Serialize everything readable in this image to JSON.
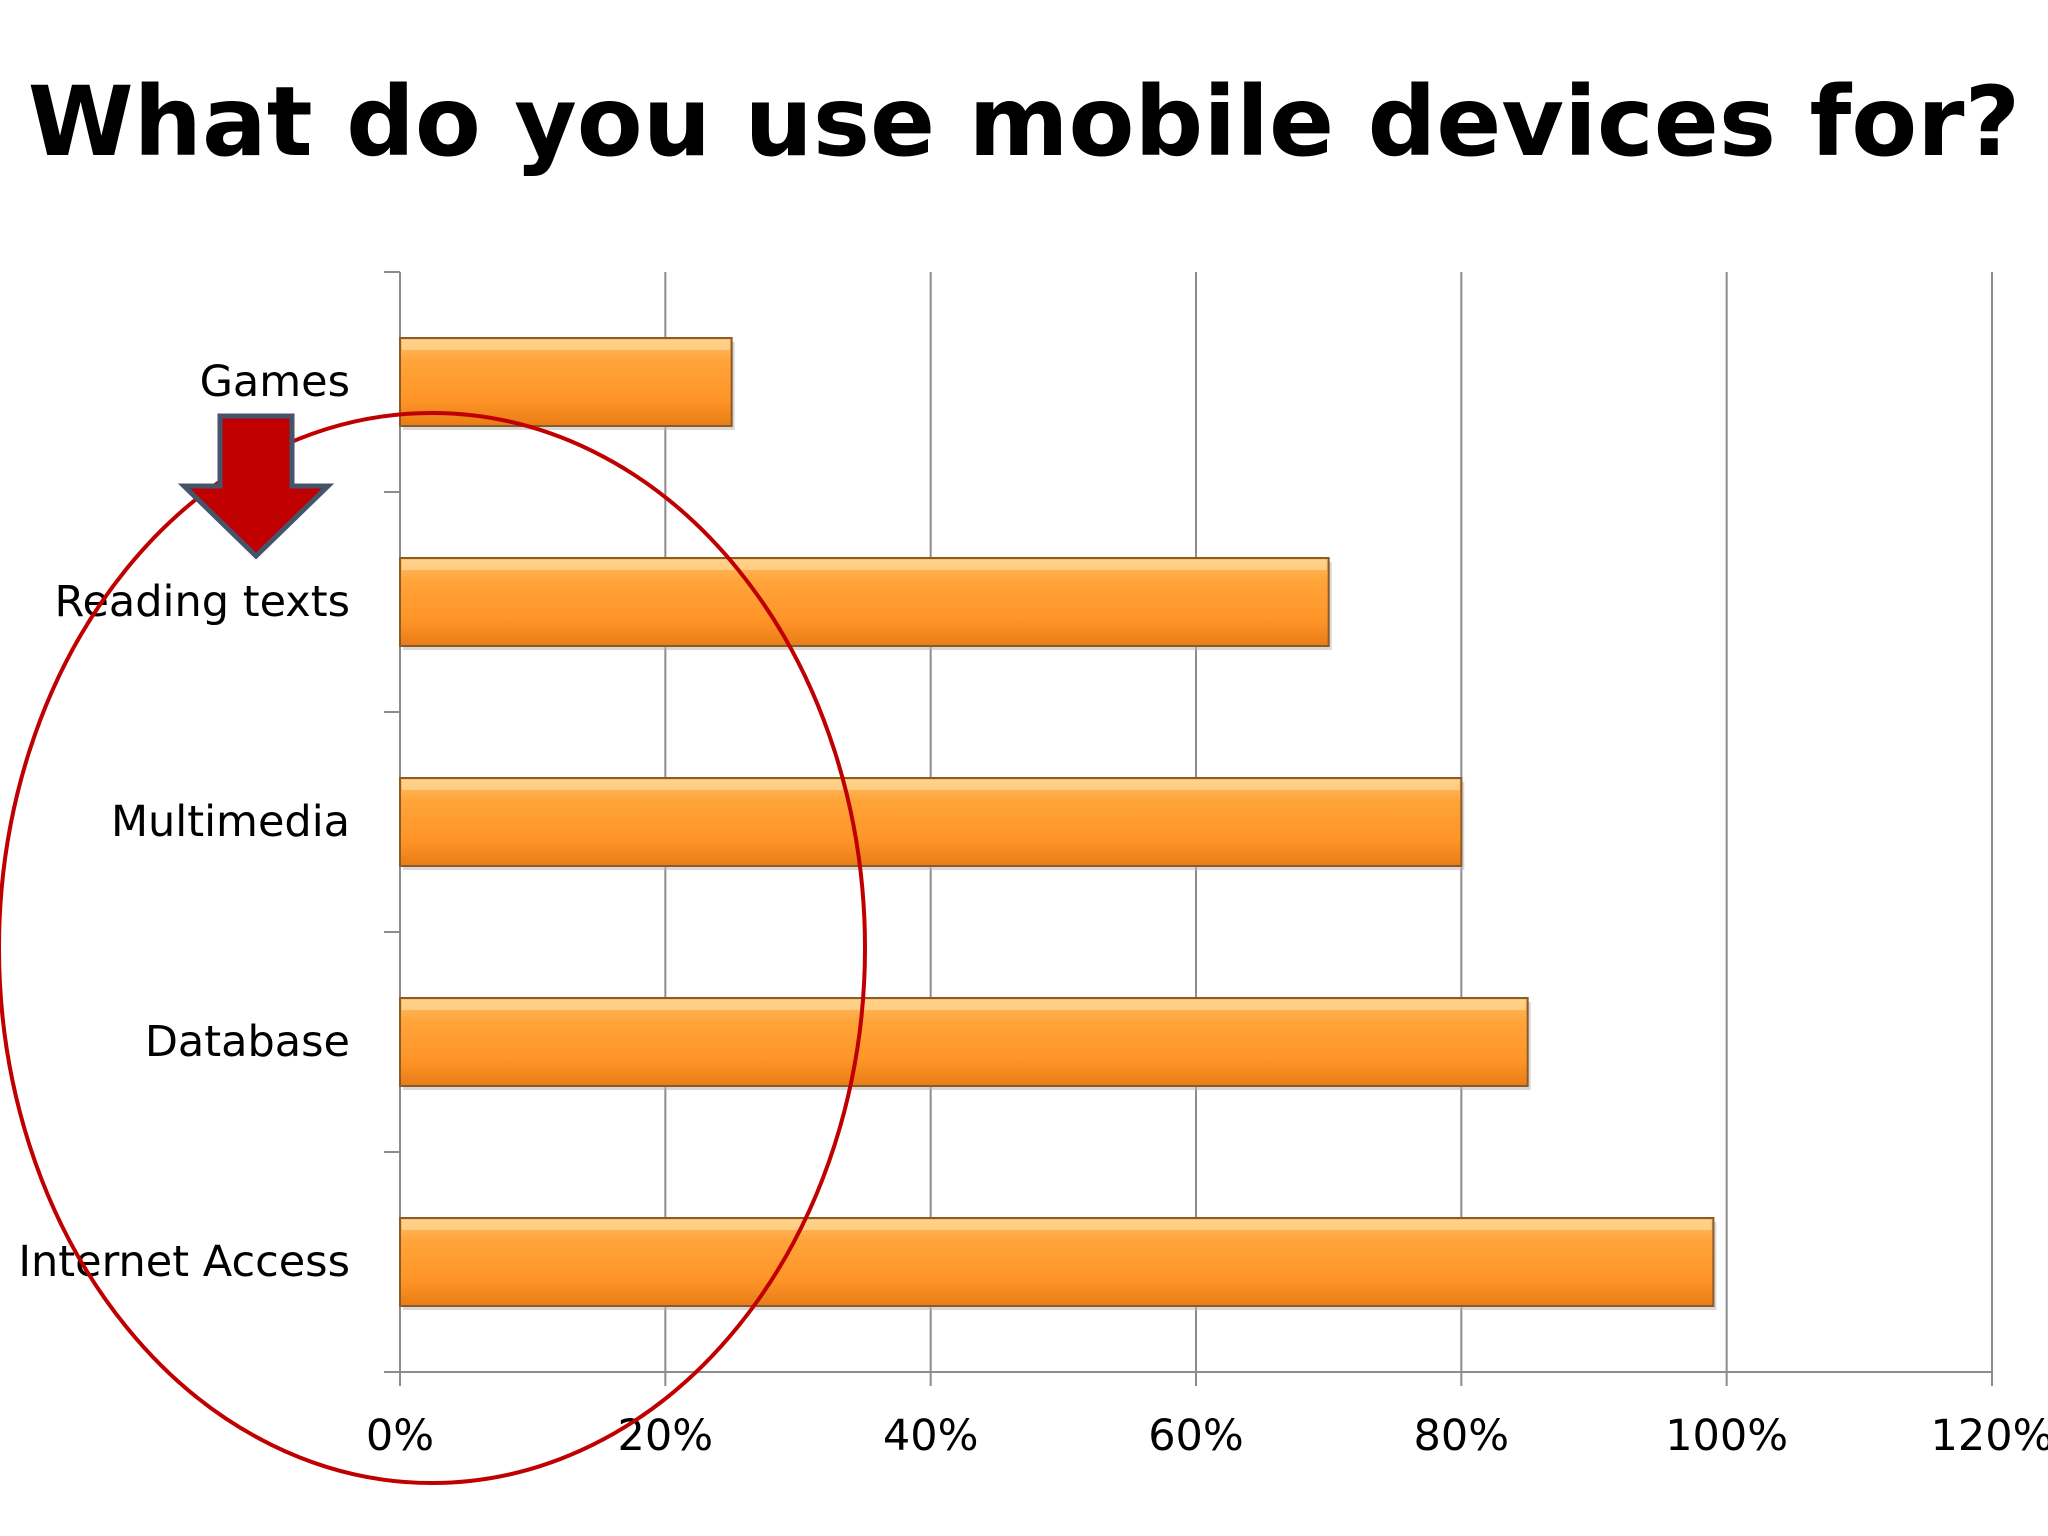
{
  "slide": {
    "title": "What do you use mobile devices for?"
  },
  "chart_data": {
    "type": "bar",
    "orientation": "horizontal",
    "title": "What do you use mobile devices for?",
    "categories": [
      "Games",
      "Reading texts",
      "Multimedia",
      "Database",
      "Internet Access"
    ],
    "values": [
      0.25,
      0.7,
      0.8,
      0.85,
      0.99
    ],
    "x_ticks": [
      "0%",
      "20%",
      "40%",
      "60%",
      "80%",
      "100%",
      "120%"
    ],
    "xlim": [
      0,
      1.2
    ],
    "grid": "vertical",
    "legend": "none",
    "colors": {
      "bar_light": "#ffc060",
      "bar_main": "#ff9a2e",
      "bar_dark": "#e07a14",
      "bar_edge": "#8a5a28",
      "gridline": "#8c8c8c",
      "annotation_red": "#c00000",
      "arrow_outline": "#44546a"
    },
    "annotations": [
      {
        "kind": "ellipse",
        "icon": "highlight-circle",
        "color": "#c00000"
      },
      {
        "kind": "arrow",
        "icon": "down-arrow-icon",
        "color": "#c00000"
      }
    ]
  }
}
